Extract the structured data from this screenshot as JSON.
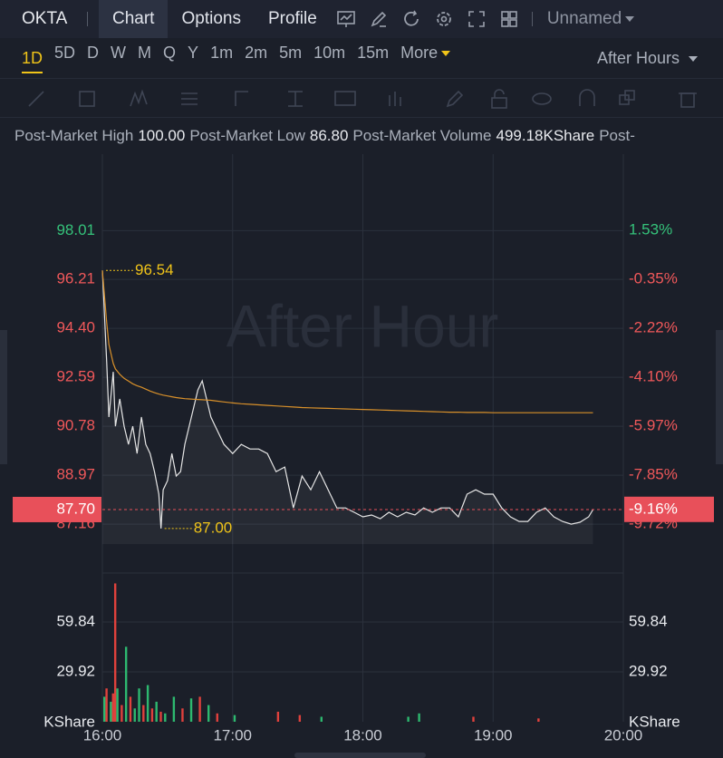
{
  "toolbar": {
    "symbol": "OKTA",
    "tabs": [
      "Chart",
      "Options",
      "Profile"
    ],
    "layout": "Unnamed"
  },
  "periods": [
    "1D",
    "5D",
    "D",
    "W",
    "M",
    "Q",
    "Y",
    "1m",
    "2m",
    "5m",
    "10m",
    "15m",
    "More"
  ],
  "session": "After Hours",
  "stats": [
    {
      "label": "Post-Market High",
      "value": "100.00"
    },
    {
      "label": "Post-Market Low",
      "value": "86.80"
    },
    {
      "label": "Post-Market Volume",
      "value": "499.18KShare"
    },
    {
      "label": "Post-"
    }
  ],
  "chart_data": [
    {
      "type": "line",
      "watermark": "After Hour",
      "x": [
        0,
        2,
        3,
        5,
        6,
        8,
        10,
        12,
        14,
        16,
        18,
        20,
        22,
        24,
        26,
        27,
        28,
        30,
        32,
        34,
        36,
        38,
        40,
        42,
        44,
        46,
        48,
        50,
        52,
        56,
        60,
        64,
        68,
        72,
        76,
        80,
        84,
        88,
        92,
        96,
        100,
        104,
        108,
        112,
        116,
        120,
        124,
        128,
        132,
        136,
        140,
        144,
        148,
        152,
        156,
        160,
        164,
        168,
        172,
        176,
        180,
        184,
        188,
        192,
        196,
        200,
        204,
        208,
        212,
        216,
        220,
        224,
        226
      ],
      "series": [
        {
          "color": "#e6e6e6",
          "values": [
            96.54,
            93.13,
            91.12,
            92.79,
            90.78,
            91.79,
            90.78,
            90.11,
            90.78,
            89.77,
            91.12,
            90.11,
            89.77,
            89.1,
            88.27,
            87.0,
            88.43,
            88.77,
            89.77,
            88.94,
            89.1,
            90.11,
            90.78,
            91.45,
            92.12,
            92.46,
            91.79,
            91.12,
            90.78,
            90.11,
            89.77,
            90.11,
            89.94,
            89.94,
            89.77,
            89.1,
            89.27,
            87.76,
            88.94,
            88.43,
            89.1,
            88.43,
            87.76,
            87.76,
            87.6,
            87.43,
            87.5,
            87.36,
            87.6,
            87.43,
            87.6,
            87.5,
            87.76,
            87.6,
            87.76,
            87.76,
            87.43,
            88.27,
            88.43,
            88.27,
            88.27,
            87.76,
            87.43,
            87.26,
            87.26,
            87.6,
            87.76,
            87.43,
            87.26,
            87.16,
            87.23,
            87.43,
            87.7
          ]
        },
        {
          "color": "#d8902a",
          "values": [
            96.54,
            94.6,
            93.8,
            93.1,
            92.9,
            92.7,
            92.55,
            92.45,
            92.35,
            92.28,
            92.22,
            92.15,
            92.08,
            92.02,
            91.97,
            91.95,
            91.93,
            91.9,
            91.87,
            91.84,
            91.82,
            91.8,
            91.79,
            91.78,
            91.77,
            91.76,
            91.75,
            91.74,
            91.72,
            91.68,
            91.64,
            91.61,
            91.59,
            91.57,
            91.55,
            91.53,
            91.51,
            91.49,
            91.47,
            91.46,
            91.45,
            91.44,
            91.43,
            91.42,
            91.41,
            91.4,
            91.39,
            91.38,
            91.37,
            91.36,
            91.35,
            91.34,
            91.33,
            91.32,
            91.31,
            91.3,
            91.3,
            91.29,
            91.29,
            91.29,
            91.28,
            91.28,
            91.28,
            91.28,
            91.28,
            91.28,
            91.28,
            91.28,
            91.28,
            91.28,
            91.28,
            91.28,
            91.28
          ]
        }
      ],
      "xlim": [
        0,
        240
      ],
      "xticks": [
        {
          "value": 0,
          "label": "16:00"
        },
        {
          "value": 60,
          "label": "17:00"
        },
        {
          "value": 120,
          "label": "18:00"
        },
        {
          "value": 180,
          "label": "19:00"
        },
        {
          "value": 240,
          "label": "20:00"
        }
      ],
      "ylim": [
        85.42,
        100.84
      ],
      "yticks": [
        98.01,
        96.21,
        {
          "value": 94.4,
          "label": "94.40"
        },
        92.59,
        90.78,
        88.97,
        87.16
      ],
      "y2lim": [
        -11.53,
        4.45
      ],
      "y2ticks": [
        {
          "value": 1.53,
          "label": "1.53%"
        },
        {
          "value": -0.35,
          "label": "-0.35%"
        },
        {
          "value": -2.22,
          "label": "-2.22%"
        },
        {
          "value": -4.1,
          "label": "-4.10%"
        },
        {
          "value": -5.97,
          "label": "-5.97%"
        },
        {
          "value": -7.85,
          "label": "-7.85%"
        },
        {
          "value": -9.72,
          "label": "-9.72%"
        }
      ],
      "annotations": [
        {
          "x": 0,
          "value": 96.54,
          "label": "96.54"
        },
        {
          "x": 27,
          "value": 87.0,
          "label": "87.00"
        }
      ],
      "last": {
        "value": 87.7,
        "label": "87.70",
        "change": -9.16,
        "change_label": "-9.16%",
        "color": "#e8505a"
      },
      "up_color": "#35c27a",
      "down_color": "#f0585a",
      "annotation_color": "#f0c419",
      "grid": true
    },
    {
      "type": "bar",
      "unit": "KShare",
      "x": [
        0,
        1,
        3,
        4,
        5,
        6,
        8,
        10,
        12,
        14,
        16,
        18,
        20,
        22,
        24,
        26,
        28,
        32,
        36,
        40,
        44,
        48,
        52,
        60,
        80,
        90,
        100,
        140,
        145,
        170,
        200
      ],
      "values": [
        15,
        20,
        12,
        17,
        83,
        20,
        10,
        45,
        15,
        8,
        20,
        10,
        22,
        8,
        12,
        6,
        5,
        15,
        8,
        14,
        15,
        10,
        5,
        4,
        6,
        4,
        3,
        3,
        5,
        3,
        2
      ],
      "colors": [
        "#2db86f",
        "#e0413c",
        "#2db86f",
        "#e0413c",
        "#e0413c",
        "#2db86f",
        "#e0413c",
        "#2db86f",
        "#e0413c",
        "#2db86f",
        "#2db86f",
        "#e0413c",
        "#2db86f",
        "#e0413c",
        "#2db86f",
        "#e0413c",
        "#2db86f",
        "#2db86f",
        "#e0413c",
        "#2db86f",
        "#e0413c",
        "#2db86f",
        "#e0413c",
        "#2db86f",
        "#e0413c",
        "#e0413c",
        "#2db86f",
        "#2db86f",
        "#2db86f",
        "#e0413c",
        "#e0413c"
      ],
      "ylim": [
        0,
        87.6
      ],
      "yticks": [
        29.92,
        59.84
      ],
      "grid": true
    }
  ]
}
